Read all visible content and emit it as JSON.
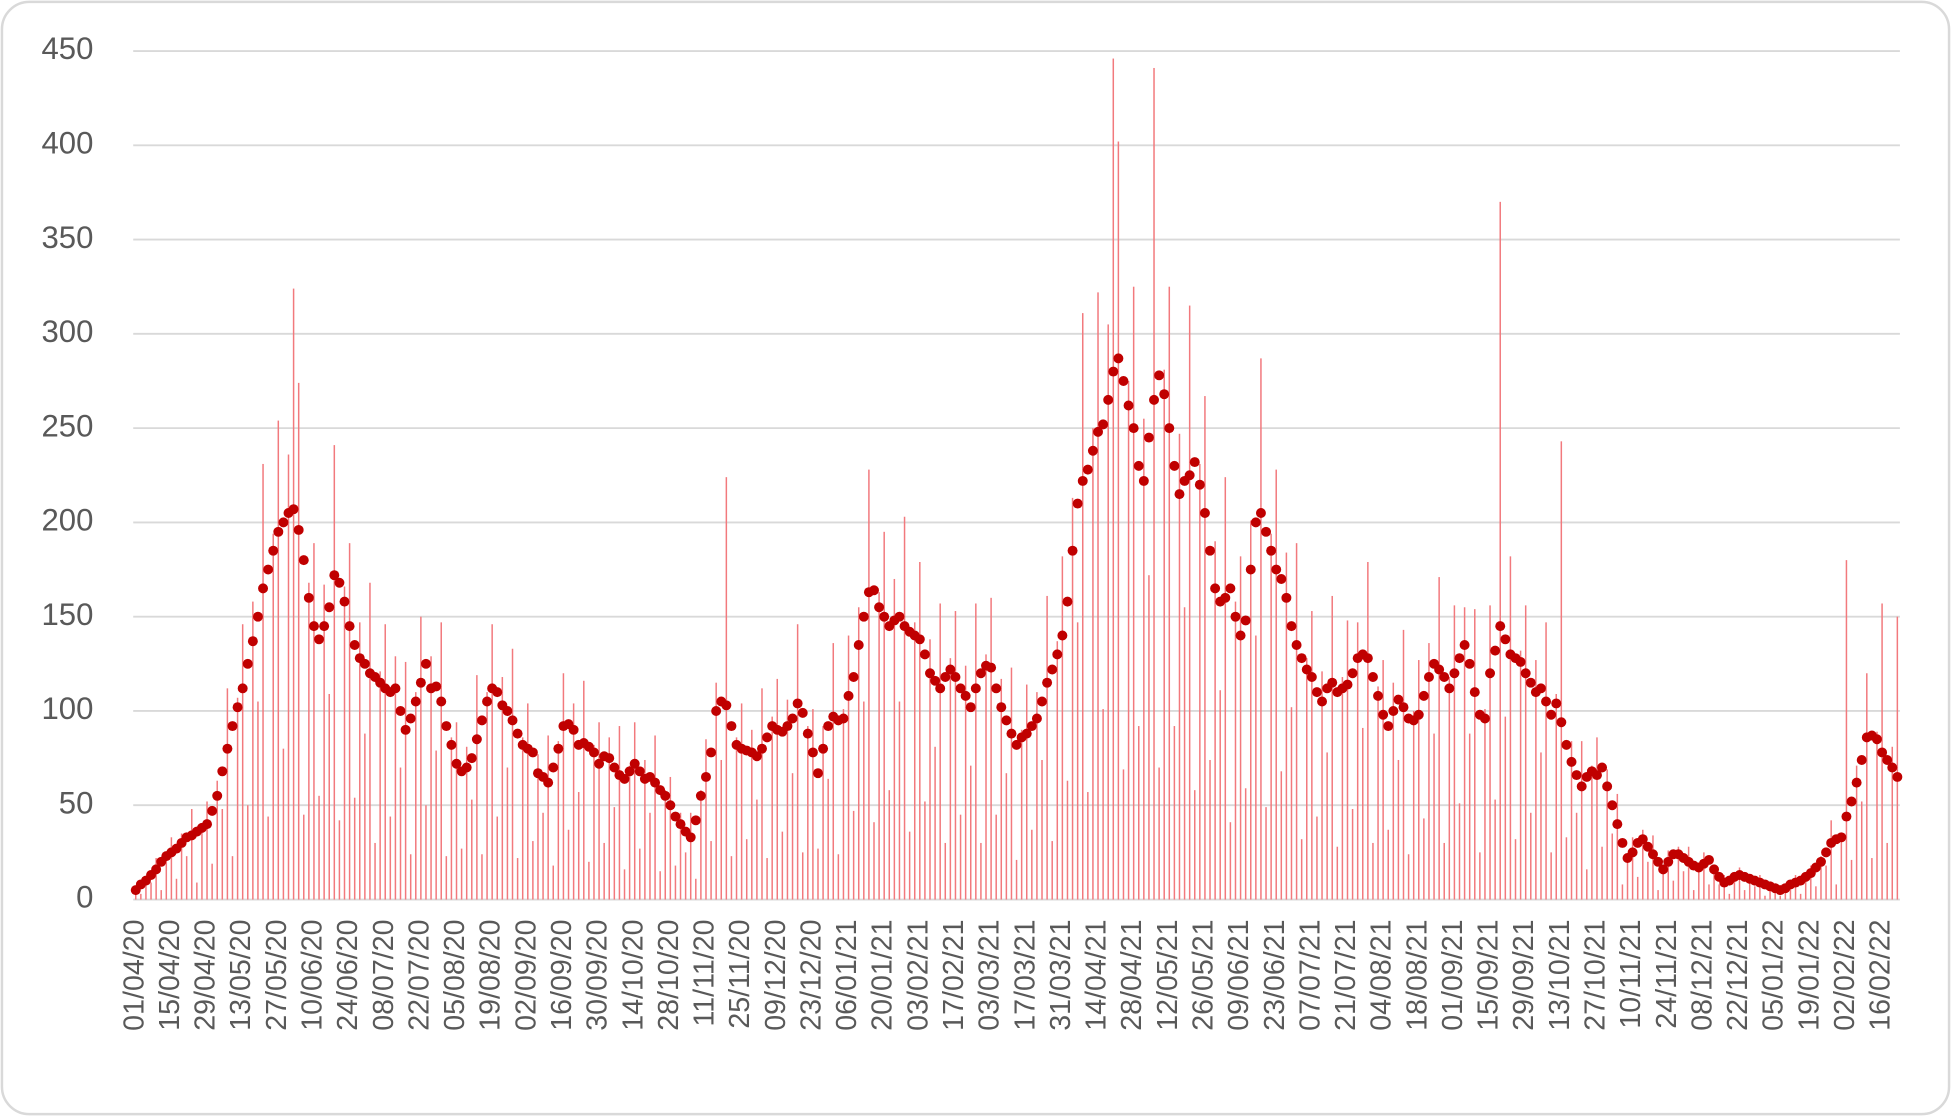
{
  "chart_data": {
    "type": "bar",
    "categories": [
      "01/04/20",
      null,
      null,
      null,
      null,
      null,
      null,
      "15/04/20",
      null,
      null,
      null,
      null,
      null,
      null,
      "29/04/20",
      null,
      null,
      null,
      null,
      null,
      null,
      "13/05/20",
      null,
      null,
      null,
      null,
      null,
      null,
      "27/05/20",
      null,
      null,
      null,
      null,
      null,
      null,
      "10/06/20",
      null,
      null,
      null,
      null,
      null,
      null,
      "24/06/20",
      null,
      null,
      null,
      null,
      null,
      null,
      "08/07/20",
      null,
      null,
      null,
      null,
      null,
      null,
      "22/07/20",
      null,
      null,
      null,
      null,
      null,
      null,
      "05/08/20",
      null,
      null,
      null,
      null,
      null,
      null,
      "19/08/20",
      null,
      null,
      null,
      null,
      null,
      null,
      "02/09/20",
      null,
      null,
      null,
      null,
      null,
      null,
      "16/09/20",
      null,
      null,
      null,
      null,
      null,
      null,
      "30/09/20",
      null,
      null,
      null,
      null,
      null,
      null,
      "14/10/20",
      null,
      null,
      null,
      null,
      null,
      null,
      "28/10/20",
      null,
      null,
      null,
      null,
      null,
      null,
      "11/11/20",
      null,
      null,
      null,
      null,
      null,
      null,
      "25/11/20",
      null,
      null,
      null,
      null,
      null,
      null,
      "09/12/20",
      null,
      null,
      null,
      null,
      null,
      null,
      "23/12/20",
      null,
      null,
      null,
      null,
      null,
      null,
      "06/01/21",
      null,
      null,
      null,
      null,
      null,
      null,
      "20/01/21",
      null,
      null,
      null,
      null,
      null,
      null,
      "03/02/21",
      null,
      null,
      null,
      null,
      null,
      null,
      "17/02/21",
      null,
      null,
      null,
      null,
      null,
      null,
      "03/03/21",
      null,
      null,
      null,
      null,
      null,
      null,
      "17/03/21",
      null,
      null,
      null,
      null,
      null,
      null,
      "31/03/21",
      null,
      null,
      null,
      null,
      null,
      null,
      "14/04/21",
      null,
      null,
      null,
      null,
      null,
      null,
      "28/04/21",
      null,
      null,
      null,
      null,
      null,
      null,
      "12/05/21",
      null,
      null,
      null,
      null,
      null,
      null,
      "26/05/21",
      null,
      null,
      null,
      null,
      null,
      null,
      "09/06/21",
      null,
      null,
      null,
      null,
      null,
      null,
      "23/06/21",
      null,
      null,
      null,
      null,
      null,
      null,
      "07/07/21",
      null,
      null,
      null,
      null,
      null,
      null,
      "21/07/21",
      null,
      null,
      null,
      null,
      null,
      null,
      "04/08/21",
      null,
      null,
      null,
      null,
      null,
      null,
      "18/08/21",
      null,
      null,
      null,
      null,
      null,
      null,
      "01/09/21",
      null,
      null,
      null,
      null,
      null,
      null,
      "15/09/21",
      null,
      null,
      null,
      null,
      null,
      null,
      "29/09/21",
      null,
      null,
      null,
      null,
      null,
      null,
      "13/10/21",
      null,
      null,
      null,
      null,
      null,
      null,
      "27/10/21",
      null,
      null,
      null,
      null,
      null,
      null,
      "10/11/21",
      null,
      null,
      null,
      null,
      null,
      null,
      "24/11/21",
      null,
      null,
      null,
      null,
      null,
      null,
      "08/12/21",
      null,
      null,
      null,
      null,
      null,
      null,
      "22/12/21",
      null,
      null,
      null,
      null,
      null,
      null,
      "05/01/22",
      null,
      null,
      null,
      null,
      null,
      null,
      "19/01/22",
      null,
      null,
      null,
      null,
      null,
      null,
      "02/02/22",
      null,
      null,
      null,
      null,
      null,
      null,
      "16/02/22",
      null,
      null,
      null
    ],
    "series": [
      {
        "type": "bar",
        "color": "#f2797d",
        "values": [
          7,
          3,
          12,
          9,
          22,
          5,
          24,
          33,
          11,
          35,
          23,
          48,
          9,
          40,
          52,
          19,
          63,
          48,
          112,
          23,
          107,
          146,
          50,
          158,
          105,
          231,
          44,
          194,
          254,
          80,
          236,
          324,
          274,
          45,
          168,
          189,
          55,
          167,
          109,
          241,
          42,
          166,
          189,
          54,
          147,
          88,
          168,
          30,
          121,
          146,
          44,
          129,
          70,
          126,
          24,
          110,
          150,
          50,
          129,
          79,
          147,
          23,
          86,
          94,
          27,
          81,
          53,
          119,
          24,
          110,
          146,
          44,
          118,
          70,
          133,
          22,
          86,
          104,
          31,
          77,
          46,
          87,
          18,
          84,
          120,
          37,
          104,
          57,
          116,
          20,
          82,
          94,
          30,
          86,
          49,
          92,
          16,
          71,
          94,
          27,
          74,
          46,
          87,
          15,
          58,
          65,
          18,
          46,
          25,
          46,
          11,
          58,
          85,
          31,
          115,
          74,
          224,
          23,
          86,
          104,
          32,
          90,
          53,
          112,
          22,
          97,
          117,
          36,
          106,
          67,
          146,
          25,
          92,
          101,
          27,
          92,
          64,
          136,
          24,
          101,
          140,
          47,
          155,
          105,
          228,
          41,
          163,
          195,
          58,
          170,
          105,
          203,
          36,
          147,
          179,
          52,
          138,
          81,
          157,
          30,
          128,
          153,
          45,
          124,
          71,
          157,
          30,
          130,
          160,
          45,
          117,
          67,
          123,
          21,
          90,
          114,
          37,
          110,
          74,
          161,
          31,
          137,
          182,
          63,
          213,
          147,
          311,
          57,
          250,
          322,
          101,
          305,
          446,
          402,
          69,
          275,
          325,
          92,
          255,
          172,
          441,
          70,
          281,
          325,
          92,
          247,
          155,
          315,
          58,
          231,
          267,
          74,
          190,
          111,
          224,
          41,
          158,
          182,
          59,
          201,
          140,
          287,
          49,
          194,
          228,
          68,
          184,
          102,
          189,
          32,
          128,
          153,
          44,
          121,
          78,
          161,
          28,
          118,
          148,
          48,
          147,
          91,
          179,
          30,
          113,
          127,
          37,
          115,
          74,
          143,
          24,
          100,
          127,
          43,
          136,
          88,
          171,
          30,
          118,
          156,
          51,
          155,
          88,
          154,
          25,
          101,
          156,
          53,
          370,
          97,
          182,
          32,
          132,
          156,
          46,
          127,
          78,
          147,
          25,
          109,
          243,
          33,
          84,
          46,
          84,
          16,
          71,
          86,
          28,
          69,
          35,
          56,
          8,
          23,
          33,
          12,
          37,
          20,
          34,
          5,
          17,
          26,
          10,
          28,
          15,
          28,
          5,
          18,
          25,
          8,
          18,
          8,
          13,
          3,
          13,
          17,
          5,
          13,
          7,
          13,
          2,
          7,
          8,
          2,
          7,
          6,
          13,
          3,
          13,
          18,
          7,
          23,
          18,
          42,
          8,
          35,
          180,
          21,
          71,
          52,
          120,
          22,
          89,
          157,
          30,
          81,
          150
        ]
      },
      {
        "type": "dot",
        "color": "#c00000",
        "values": [
          5,
          8,
          10,
          13,
          16,
          20,
          23,
          25,
          27,
          30,
          33,
          34,
          36,
          38,
          40,
          47,
          55,
          68,
          80,
          92,
          102,
          112,
          125,
          137,
          150,
          165,
          175,
          185,
          195,
          200,
          205,
          207,
          196,
          180,
          160,
          145,
          138,
          145,
          155,
          172,
          168,
          158,
          145,
          135,
          128,
          125,
          120,
          118,
          115,
          112,
          110,
          112,
          100,
          90,
          96,
          105,
          115,
          125,
          112,
          113,
          105,
          92,
          82,
          72,
          68,
          70,
          75,
          85,
          95,
          105,
          112,
          110,
          103,
          100,
          95,
          88,
          82,
          80,
          78,
          67,
          65,
          62,
          70,
          80,
          92,
          93,
          90,
          82,
          83,
          81,
          78,
          72,
          76,
          75,
          70,
          66,
          64,
          68,
          72,
          68,
          64,
          65,
          62,
          58,
          55,
          50,
          44,
          40,
          36,
          33,
          42,
          55,
          65,
          78,
          100,
          105,
          103,
          92,
          82,
          80,
          79,
          78,
          76,
          80,
          86,
          92,
          90,
          89,
          92,
          96,
          104,
          99,
          88,
          78,
          67,
          80,
          92,
          97,
          95,
          96,
          108,
          118,
          135,
          150,
          163,
          164,
          155,
          150,
          145,
          148,
          150,
          145,
          142,
          140,
          138,
          130,
          120,
          116,
          112,
          118,
          122,
          118,
          112,
          108,
          102,
          112,
          120,
          124,
          123,
          112,
          102,
          95,
          88,
          82,
          86,
          88,
          92,
          96,
          105,
          115,
          122,
          130,
          140,
          158,
          185,
          210,
          222,
          228,
          238,
          248,
          252,
          265,
          280,
          287,
          275,
          262,
          250,
          230,
          222,
          245,
          265,
          278,
          268,
          250,
          230,
          215,
          222,
          225,
          232,
          220,
          205,
          185,
          165,
          158,
          160,
          165,
          150,
          140,
          148,
          175,
          200,
          205,
          195,
          185,
          175,
          170,
          160,
          145,
          135,
          128,
          122,
          118,
          110,
          105,
          112,
          115,
          110,
          112,
          114,
          120,
          128,
          130,
          128,
          118,
          108,
          98,
          92,
          100,
          106,
          102,
          96,
          95,
          98,
          108,
          118,
          125,
          122,
          118,
          112,
          120,
          128,
          135,
          125,
          110,
          98,
          96,
          120,
          132,
          145,
          138,
          130,
          128,
          126,
          120,
          115,
          110,
          112,
          105,
          98,
          104,
          94,
          82,
          73,
          66,
          60,
          65,
          68,
          66,
          70,
          60,
          50,
          40,
          30,
          22,
          25,
          30,
          32,
          28,
          24,
          20,
          16,
          20,
          24,
          24,
          22,
          20,
          18,
          17,
          19,
          21,
          16,
          12,
          9,
          10,
          12,
          13,
          12,
          11,
          10,
          9,
          8,
          7,
          6,
          5,
          6,
          8,
          9,
          10,
          12,
          14,
          17,
          20,
          25,
          30,
          32,
          33,
          44,
          52,
          62,
          74,
          86,
          87,
          85,
          78,
          74,
          70,
          65
        ]
      }
    ],
    "ylim": [
      0,
      450
    ],
    "yticks": [
      0,
      50,
      100,
      150,
      200,
      250,
      300,
      350,
      400,
      450
    ],
    "grid": true
  }
}
